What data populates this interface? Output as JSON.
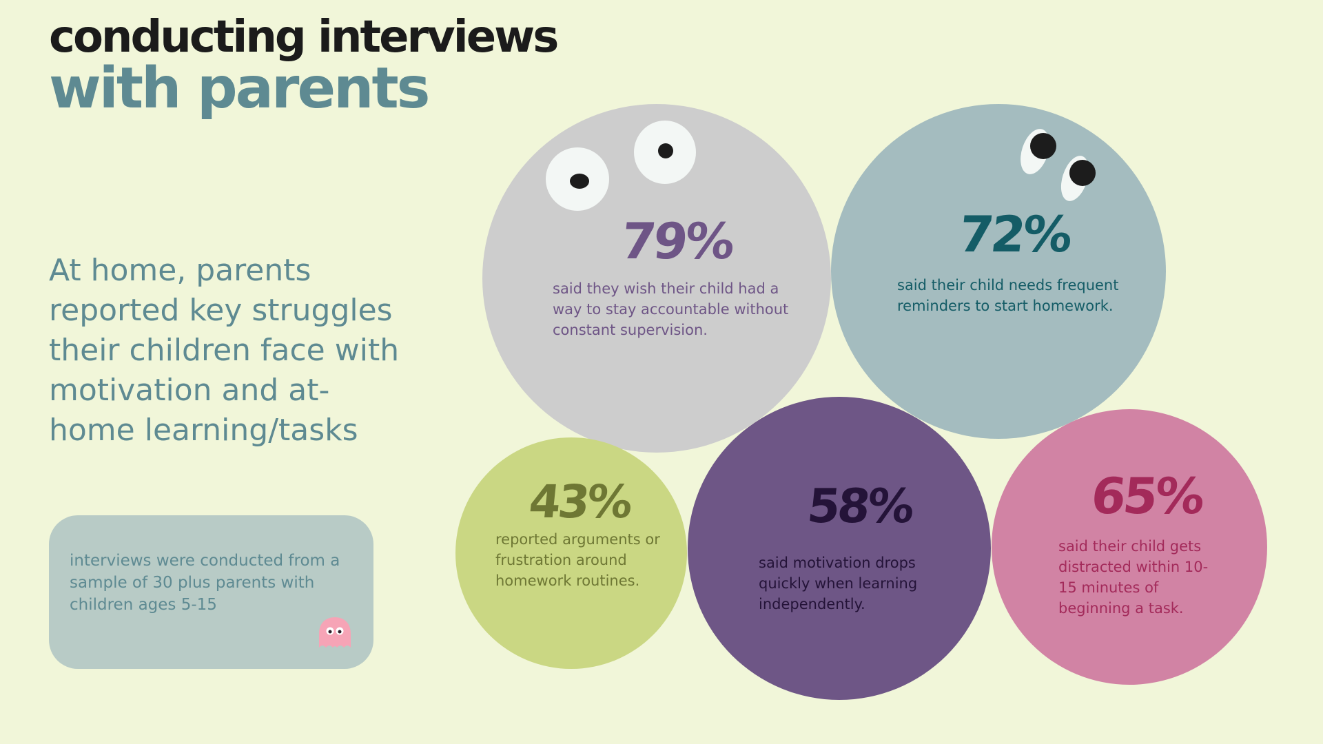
{
  "title": {
    "line1": "conducting interviews",
    "line2": "with parents"
  },
  "headline": "At home, parents reported key struggles their children face with motivation and at-home learning/tasks",
  "note": {
    "text": "interviews were conducted from a sample of 30 plus parents with children ages 5-15",
    "icon": "ghost-icon"
  },
  "stats": {
    "s79": {
      "value": "79%",
      "text": "said they wish their child had a way to stay accountable without constant supervision.",
      "bubble_color": "#cdcdcd",
      "accent_color": "#6e5586"
    },
    "s72": {
      "value": "72%",
      "text": "said their child needs frequent reminders to start homework.",
      "bubble_color": "#a4bcbf",
      "accent_color": "#145c66"
    },
    "s43": {
      "value": "43%",
      "text": "reported arguments or frustration around homework routines.",
      "bubble_color": "#cad783",
      "accent_color": "#6e7734"
    },
    "s58": {
      "value": "58%",
      "text": "said motivation drops quickly when learning independently.",
      "bubble_color": "#6e5686",
      "accent_color": "#241338"
    },
    "s65": {
      "value": "65%",
      "text": "said their child gets distracted within 10-15 minutes of beginning a task.",
      "bubble_color": "#d183a4",
      "accent_color": "#a32a5a"
    }
  }
}
